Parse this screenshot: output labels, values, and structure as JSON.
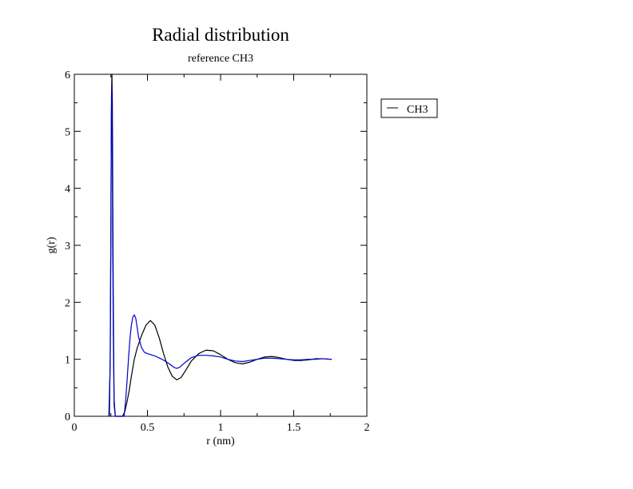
{
  "chart_data": {
    "type": "line",
    "title": "Radial distribution",
    "subtitle": "reference CH3",
    "xlabel": "r (nm)",
    "ylabel": "g(r)",
    "xlim": [
      0,
      2
    ],
    "ylim": [
      0,
      6
    ],
    "x_ticks": [
      "0",
      "0.5",
      "1",
      "1.5",
      "2"
    ],
    "y_ticks": [
      "0",
      "1",
      "2",
      "3",
      "4",
      "5",
      "6"
    ],
    "grid": false,
    "legend_position": "right, outside plot (top)",
    "legend": [
      "CH3"
    ],
    "series": [
      {
        "name": "CH3",
        "color": "#000000",
        "points": [
          [
            0.236,
            0
          ],
          [
            0.245,
            0.9
          ],
          [
            0.25,
            3.4
          ],
          [
            0.254,
            5.6
          ],
          [
            0.257,
            6.0
          ],
          [
            0.26,
            5.5
          ],
          [
            0.263,
            3.8
          ],
          [
            0.267,
            1.8
          ],
          [
            0.272,
            0.3
          ],
          [
            0.28,
            0
          ],
          [
            0.33,
            0
          ],
          [
            0.345,
            0.08
          ],
          [
            0.36,
            0.25
          ],
          [
            0.375,
            0.45
          ],
          [
            0.39,
            0.7
          ],
          [
            0.41,
            1.0
          ],
          [
            0.43,
            1.2
          ],
          [
            0.46,
            1.42
          ],
          [
            0.49,
            1.6
          ],
          [
            0.52,
            1.68
          ],
          [
            0.55,
            1.6
          ],
          [
            0.58,
            1.38
          ],
          [
            0.61,
            1.1
          ],
          [
            0.64,
            0.86
          ],
          [
            0.67,
            0.7
          ],
          [
            0.7,
            0.64
          ],
          [
            0.73,
            0.68
          ],
          [
            0.76,
            0.8
          ],
          [
            0.8,
            0.97
          ],
          [
            0.85,
            1.1
          ],
          [
            0.9,
            1.16
          ],
          [
            0.95,
            1.15
          ],
          [
            1.0,
            1.08
          ],
          [
            1.05,
            1.0
          ],
          [
            1.1,
            0.94
          ],
          [
            1.15,
            0.92
          ],
          [
            1.2,
            0.95
          ],
          [
            1.25,
            1.0
          ],
          [
            1.3,
            1.04
          ],
          [
            1.35,
            1.05
          ],
          [
            1.4,
            1.03
          ],
          [
            1.45,
            1.0
          ],
          [
            1.5,
            0.98
          ],
          [
            1.55,
            0.98
          ],
          [
            1.6,
            0.99
          ],
          [
            1.65,
            1.01
          ],
          [
            1.7,
            1.01
          ],
          [
            1.75,
            1.0
          ],
          [
            1.76,
            1.0
          ]
        ]
      },
      {
        "name": "",
        "color": "#0000cc",
        "points": [
          [
            0.24,
            0
          ],
          [
            0.246,
            1.2
          ],
          [
            0.25,
            3.2
          ],
          [
            0.253,
            5.2
          ],
          [
            0.256,
            5.8
          ],
          [
            0.259,
            5.2
          ],
          [
            0.262,
            3.3
          ],
          [
            0.266,
            1.5
          ],
          [
            0.272,
            0.2
          ],
          [
            0.28,
            0
          ],
          [
            0.34,
            0
          ],
          [
            0.35,
            0.25
          ],
          [
            0.36,
            0.6
          ],
          [
            0.37,
            1.0
          ],
          [
            0.38,
            1.35
          ],
          [
            0.39,
            1.6
          ],
          [
            0.4,
            1.74
          ],
          [
            0.41,
            1.78
          ],
          [
            0.42,
            1.72
          ],
          [
            0.43,
            1.55
          ],
          [
            0.44,
            1.38
          ],
          [
            0.46,
            1.2
          ],
          [
            0.48,
            1.12
          ],
          [
            0.5,
            1.1
          ],
          [
            0.55,
            1.06
          ],
          [
            0.6,
            1.0
          ],
          [
            0.65,
            0.92
          ],
          [
            0.68,
            0.86
          ],
          [
            0.7,
            0.84
          ],
          [
            0.72,
            0.86
          ],
          [
            0.76,
            0.95
          ],
          [
            0.8,
            1.03
          ],
          [
            0.85,
            1.07
          ],
          [
            0.9,
            1.07
          ],
          [
            0.95,
            1.06
          ],
          [
            1.0,
            1.04
          ],
          [
            1.05,
            1.0
          ],
          [
            1.1,
            0.97
          ],
          [
            1.15,
            0.96
          ],
          [
            1.2,
            0.98
          ],
          [
            1.25,
            1.0
          ],
          [
            1.3,
            1.02
          ],
          [
            1.35,
            1.02
          ],
          [
            1.4,
            1.01
          ],
          [
            1.45,
            1.0
          ],
          [
            1.5,
            0.99
          ],
          [
            1.55,
            0.99
          ],
          [
            1.6,
            1.0
          ],
          [
            1.65,
            1.0
          ],
          [
            1.7,
            1.01
          ],
          [
            1.76,
            1.0
          ]
        ]
      }
    ]
  }
}
